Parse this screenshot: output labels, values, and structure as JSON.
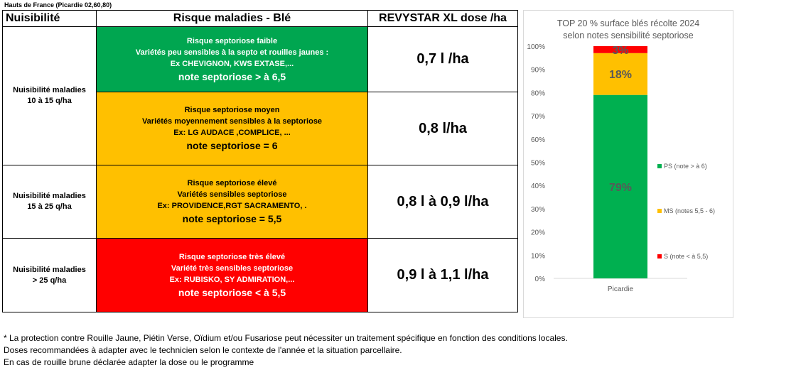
{
  "region": "Hauts de France (Picardie 02,60,80)",
  "table": {
    "headers": [
      "Nuisibilité",
      "Risque maladies - Blé",
      "REVYSTAR XL dose /ha"
    ],
    "nuisibilite": [
      {
        "line1": "Nuisibilité  maladies",
        "line2": "10 à 15 q/ha"
      },
      {
        "line1": "Nuisibilité  maladies",
        "line2": "15 à 25 q/ha"
      },
      {
        "line1": "Nuisibilité  maladies",
        "line2": "> 25 q/ha"
      }
    ],
    "rows": [
      {
        "level": "Risque septoriose faible",
        "desc": "Variétés peu sensibles à la septo et rouilles jaunes :",
        "examples": "Ex CHEVIGNON, KWS EXTASE,...",
        "note": "note septoriose  > à 6,5",
        "dose": "0,7 l /ha",
        "color": "#00a650"
      },
      {
        "level": "Risque septoriose moyen",
        "desc": "Variétés moyennement sensibles à la septoriose",
        "examples": "Ex: LG AUDACE ,COMPLICE,  ...",
        "note": "note septoriose = 6",
        "dose": "0,8 l/ha",
        "color": "#ffc000"
      },
      {
        "level": "Risque septoriose élevé",
        "desc": "Variétés sensibles septoriose",
        "examples": "Ex: PROVIDENCE,RGT SACRAMENTO, .",
        "note": "note septoriose = 5,5",
        "dose": "0,8 l à 0,9 l/ha",
        "color": "#ffc000"
      },
      {
        "level": "Risque septoriose très élevé",
        "desc": "Variété très sensibles septoriose",
        "examples": "Ex: RUBISKO, SY ADMIRATION,...",
        "note": "note septoriose < à 5,5",
        "dose": "0,9 l à 1,1 l/ha",
        "color": "#ff0000"
      }
    ]
  },
  "footnotes": [
    "* La protection contre Rouille Jaune, Piétin Verse, Oïdium et/ou Fusariose peut nécessiter un traitement spécifique en fonction des conditions locales.",
    "Doses recommandées à adapter avec le technicien selon le contexte de l'année et la situation parcellaire.",
    "En cas de rouille brune déclarée adapter la dose ou le programme"
  ],
  "chart_data": {
    "type": "bar",
    "stacked": true,
    "title_line1": "TOP 20  % surface blés  récolte 2024",
    "title_line2": "selon notes sensibilité septoriose",
    "categories": [
      "Picardie"
    ],
    "y_ticks": [
      "0%",
      "10%",
      "20%",
      "30%",
      "40%",
      "50%",
      "60%",
      "70%",
      "80%",
      "90%",
      "100%"
    ],
    "ylim": [
      0,
      100
    ],
    "series": [
      {
        "name": "PS (note > à 6)",
        "values": [
          79
        ],
        "label": "79%",
        "color": "#00b050"
      },
      {
        "name": "MS (notes 5,5 - 6)",
        "values": [
          18
        ],
        "label": "18%",
        "color": "#ffc000"
      },
      {
        "name": "S (note < à 5,5)",
        "values": [
          3
        ],
        "label": "3%",
        "color": "#ff0000"
      }
    ],
    "legend_position": "right"
  }
}
